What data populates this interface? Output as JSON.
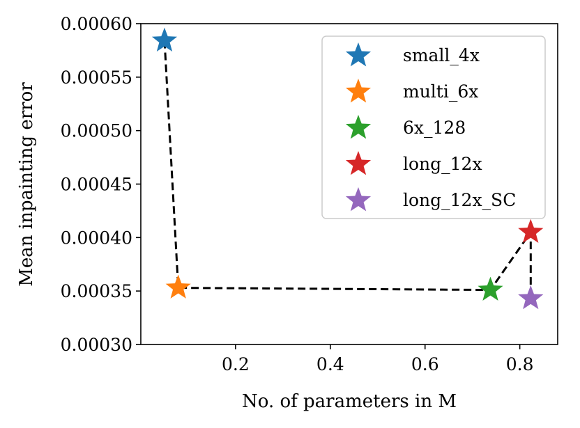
{
  "chart_data": {
    "type": "scatter",
    "title": "",
    "xlabel": "No. of parameters in M",
    "ylabel": "Mean inpainting error",
    "xlim": [
      0.0,
      0.88
    ],
    "ylim": [
      0.0003,
      0.0006
    ],
    "xticks": [
      0.2,
      0.4,
      0.6,
      0.8
    ],
    "xtick_labels": [
      "0.2",
      "0.4",
      "0.6",
      "0.8"
    ],
    "yticks": [
      0.0003,
      0.00035,
      0.0004,
      0.00045,
      0.0005,
      0.00055,
      0.0006
    ],
    "ytick_labels": [
      "0.00030",
      "0.00035",
      "0.00040",
      "0.00045",
      "0.00050",
      "0.00055",
      "0.00060"
    ],
    "grid": false,
    "legend_position": "top-right",
    "marker": "star",
    "series": [
      {
        "name": "small_4x",
        "x": 0.05,
        "y": 0.000584,
        "color": "#1f77b4"
      },
      {
        "name": "multi_6x",
        "x": 0.079,
        "y": 0.000353,
        "color": "#ff7f0e"
      },
      {
        "name": "6x_128",
        "x": 0.738,
        "y": 0.000351,
        "color": "#2ca02c"
      },
      {
        "name": "long_12x",
        "x": 0.823,
        "y": 0.000405,
        "color": "#d62728"
      },
      {
        "name": "long_12x_SC",
        "x": 0.823,
        "y": 0.000343,
        "color": "#9467bd"
      }
    ],
    "line": {
      "style": "dashed",
      "color": "#000000",
      "order": [
        "small_4x",
        "multi_6x",
        "6x_128",
        "long_12x",
        "long_12x_SC"
      ]
    }
  }
}
